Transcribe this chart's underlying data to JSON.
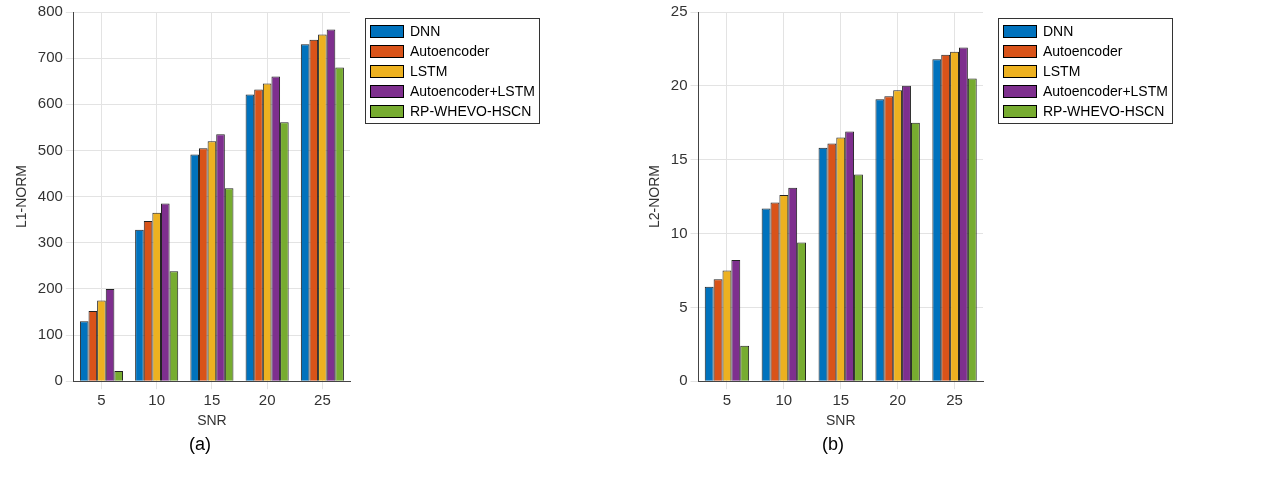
{
  "chart_data": [
    {
      "type": "bar",
      "xlabel": "SNR",
      "ylabel": "L1-NORM",
      "categories": [
        "5",
        "10",
        "15",
        "20",
        "25"
      ],
      "series": [
        {
          "name": "DNN",
          "color": "#0072bd",
          "values": [
            130,
            328,
            491,
            621,
            730
          ]
        },
        {
          "name": "Autoencoder",
          "color": "#d95319",
          "values": [
            152,
            347,
            505,
            632,
            740
          ]
        },
        {
          "name": "LSTM",
          "color": "#edb120",
          "values": [
            175,
            365,
            520,
            645,
            751
          ]
        },
        {
          "name": "Autoencoder+LSTM",
          "color": "#7e2f8e",
          "values": [
            200,
            385,
            535,
            660,
            762
          ]
        },
        {
          "name": "RP-WHEVO-HSCN",
          "color": "#77ac30",
          "values": [
            22,
            238,
            418,
            561,
            680
          ]
        }
      ],
      "ylim": [
        0,
        800
      ],
      "yticks": [
        0,
        100,
        200,
        300,
        400,
        500,
        600,
        700,
        800
      ],
      "grid": true,
      "legend": "top right",
      "annotations": [
        "(a)"
      ]
    },
    {
      "type": "bar",
      "xlabel": "SNR",
      "ylabel": "L2-NORM",
      "categories": [
        "5",
        "10",
        "15",
        "20",
        "25"
      ],
      "series": [
        {
          "name": "DNN",
          "color": "#0072bd",
          "values": [
            6.4,
            11.7,
            15.8,
            19.1,
            21.8
          ]
        },
        {
          "name": "Autoencoder",
          "color": "#d95319",
          "values": [
            6.9,
            12.1,
            16.1,
            19.3,
            22.1
          ]
        },
        {
          "name": "LSTM",
          "color": "#edb120",
          "values": [
            7.5,
            12.6,
            16.5,
            19.7,
            22.3
          ]
        },
        {
          "name": "Autoencoder+LSTM",
          "color": "#7e2f8e",
          "values": [
            8.2,
            13.1,
            16.9,
            20.0,
            22.6
          ]
        },
        {
          "name": "RP-WHEVO-HSCN",
          "color": "#77ac30",
          "values": [
            2.4,
            9.4,
            14.0,
            17.5,
            20.5
          ]
        }
      ],
      "ylim": [
        0,
        25
      ],
      "yticks": [
        0,
        5,
        10,
        15,
        20,
        25
      ],
      "grid": true,
      "legend": "top right",
      "annotations": [
        "(b)"
      ]
    }
  ]
}
